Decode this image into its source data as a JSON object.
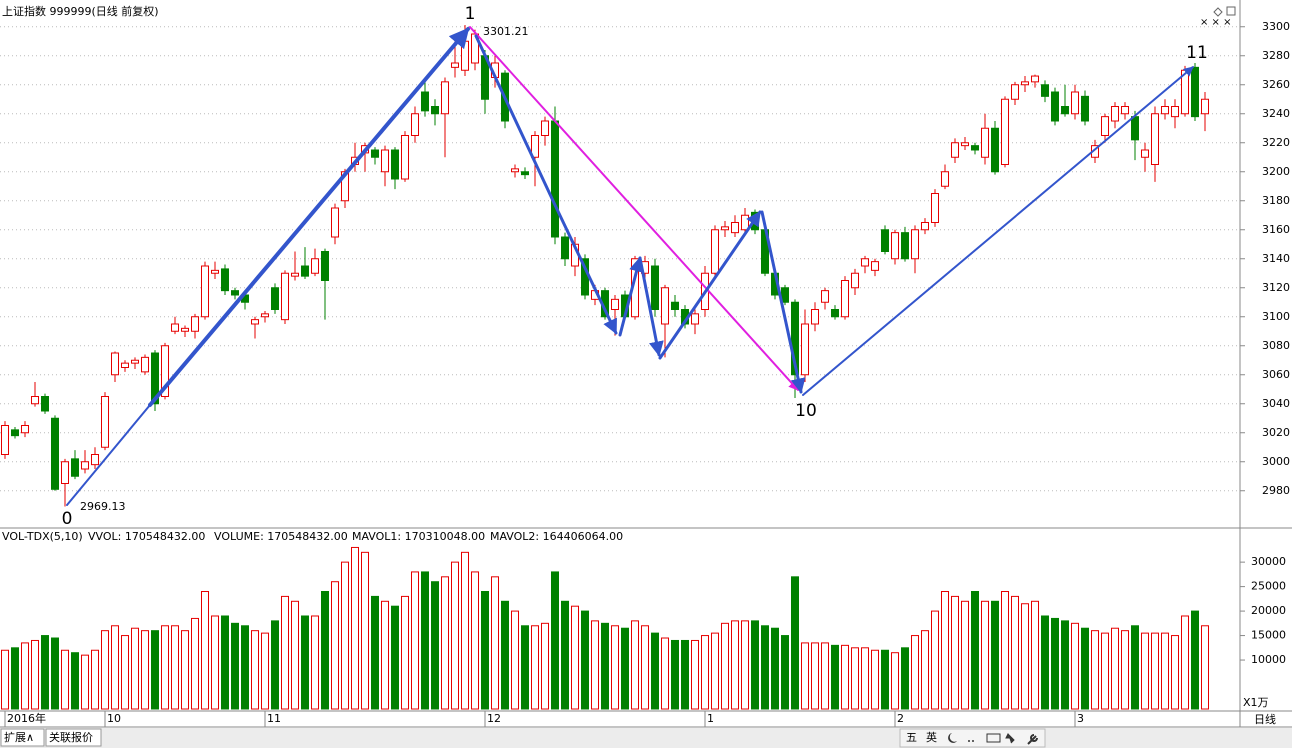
{
  "chart_data": [
    {
      "type": "candlestick",
      "title": "上证指数 999999(日线 前复权)",
      "up_color": "#e60000",
      "down_color": "#008000",
      "categories": [
        "2016年",
        null,
        null,
        null,
        null,
        null,
        null,
        null,
        null,
        null,
        "10",
        null,
        null,
        null,
        null,
        null,
        null,
        null,
        null,
        null,
        null,
        null,
        null,
        null,
        null,
        null,
        "11",
        null,
        null,
        null,
        null,
        null,
        null,
        null,
        null,
        null,
        null,
        null,
        null,
        null,
        null,
        null,
        null,
        null,
        null,
        null,
        null,
        null,
        "12",
        null,
        null,
        null,
        null,
        null,
        null,
        null,
        null,
        null,
        null,
        null,
        null,
        null,
        null,
        null,
        null,
        null,
        null,
        null,
        null,
        null,
        "1",
        null,
        null,
        null,
        null,
        null,
        null,
        null,
        null,
        null,
        null,
        null,
        null,
        null,
        null,
        null,
        null,
        null,
        null,
        "2",
        null,
        null,
        null,
        null,
        null,
        null,
        null,
        null,
        null,
        null,
        null,
        null,
        null,
        null,
        null,
        null,
        null,
        "3",
        null,
        null,
        null,
        null,
        null,
        null,
        null,
        null,
        null,
        null,
        null,
        null,
        null
      ],
      "ohlc": [
        [
          3005,
          3028,
          3002,
          3025
        ],
        [
          3022,
          3024,
          3016,
          3018
        ],
        [
          3020,
          3028,
          3017,
          3025
        ],
        [
          3040,
          3055,
          3038,
          3045
        ],
        [
          3045,
          3047,
          3033,
          3035
        ],
        [
          3030,
          3032,
          2980,
          2981
        ],
        [
          2985,
          3002,
          2969.13,
          3000
        ],
        [
          3002,
          3008,
          2988,
          2990
        ],
        [
          2995,
          3008,
          2992,
          3000
        ],
        [
          2998,
          3010,
          2995,
          3005
        ],
        [
          3010,
          3048,
          3008,
          3045
        ],
        [
          3060,
          3076,
          3055,
          3075
        ],
        [
          3065,
          3070,
          3062,
          3068
        ],
        [
          3068,
          3072,
          3064,
          3070
        ],
        [
          3062,
          3074,
          3060,
          3072
        ],
        [
          3075,
          3077,
          3035,
          3040
        ],
        [
          3045,
          3082,
          3043,
          3080
        ],
        [
          3090,
          3100,
          3088,
          3095
        ],
        [
          3090,
          3094,
          3086,
          3092
        ],
        [
          3090,
          3102,
          3085,
          3100
        ],
        [
          3100,
          3138,
          3098,
          3135
        ],
        [
          3130,
          3138,
          3126,
          3132
        ],
        [
          3133,
          3136,
          3115,
          3118
        ],
        [
          3118,
          3120,
          3112,
          3115
        ],
        [
          3115,
          3118,
          3105,
          3110
        ],
        [
          3095,
          3100,
          3085,
          3098
        ],
        [
          3100,
          3104,
          3096,
          3102
        ],
        [
          3120,
          3123,
          3102,
          3105
        ],
        [
          3098,
          3132,
          3095,
          3130
        ],
        [
          3128,
          3145,
          3125,
          3130
        ],
        [
          3135,
          3148,
          3126,
          3128
        ],
        [
          3130,
          3147,
          3128,
          3140
        ],
        [
          3145,
          3147,
          3098,
          3125
        ],
        [
          3155,
          3178,
          3150,
          3175
        ],
        [
          3180,
          3202,
          3175,
          3200
        ],
        [
          3205,
          3220,
          3200,
          3210
        ],
        [
          3213,
          3220,
          3200,
          3218
        ],
        [
          3215,
          3217,
          3205,
          3210
        ],
        [
          3200,
          3218,
          3190,
          3215
        ],
        [
          3215,
          3217,
          3188,
          3195
        ],
        [
          3195,
          3228,
          3193,
          3225
        ],
        [
          3225,
          3245,
          3220,
          3240
        ],
        [
          3255,
          3262,
          3238,
          3242
        ],
        [
          3245,
          3250,
          3232,
          3240
        ],
        [
          3240,
          3265,
          3210,
          3262
        ],
        [
          3272,
          3290,
          3265,
          3275
        ],
        [
          3270,
          3301.21,
          3266,
          3290
        ],
        [
          3275,
          3298,
          3270,
          3295
        ],
        [
          3280,
          3284,
          3240,
          3250
        ],
        [
          3265,
          3280,
          3258,
          3275
        ],
        [
          3268,
          3270,
          3230,
          3235
        ],
        [
          3200,
          3205,
          3196,
          3202
        ],
        [
          3200,
          3203,
          3195,
          3198
        ],
        [
          3210,
          3228,
          3190,
          3225
        ],
        [
          3225,
          3238,
          3218,
          3235
        ],
        [
          3235,
          3245,
          3150,
          3155
        ],
        [
          3155,
          3158,
          3135,
          3140
        ],
        [
          3135,
          3155,
          3128,
          3150
        ],
        [
          3140,
          3143,
          3112,
          3115
        ],
        [
          3112,
          3122,
          3108,
          3118
        ],
        [
          3118,
          3120,
          3098,
          3100
        ],
        [
          3105,
          3115,
          3087,
          3112
        ],
        [
          3115,
          3118,
          3098,
          3100
        ],
        [
          3100,
          3142,
          3098,
          3140
        ],
        [
          3130,
          3142,
          3125,
          3138
        ],
        [
          3135,
          3140,
          3100,
          3105
        ],
        [
          3095,
          3122,
          3072,
          3120
        ],
        [
          3110,
          3115,
          3100,
          3105
        ],
        [
          3105,
          3108,
          3092,
          3095
        ],
        [
          3095,
          3105,
          3088,
          3102
        ],
        [
          3105,
          3135,
          3100,
          3130
        ],
        [
          3130,
          3163,
          3126,
          3160
        ],
        [
          3160,
          3166,
          3155,
          3162
        ],
        [
          3158,
          3170,
          3155,
          3165
        ],
        [
          3160,
          3175,
          3157,
          3170
        ],
        [
          3172,
          3174,
          3157,
          3160
        ],
        [
          3160,
          3162,
          3128,
          3130
        ],
        [
          3130,
          3133,
          3112,
          3115
        ],
        [
          3120,
          3122,
          3108,
          3110
        ],
        [
          3110,
          3112,
          3044,
          3060
        ],
        [
          3060,
          3105,
          3055,
          3095
        ],
        [
          3095,
          3110,
          3090,
          3105
        ],
        [
          3110,
          3120,
          3105,
          3118
        ],
        [
          3105,
          3108,
          3098,
          3100
        ],
        [
          3100,
          3128,
          3098,
          3125
        ],
        [
          3120,
          3133,
          3115,
          3130
        ],
        [
          3135,
          3142,
          3130,
          3140
        ],
        [
          3132,
          3140,
          3128,
          3138
        ],
        [
          3160,
          3163,
          3143,
          3145
        ],
        [
          3140,
          3160,
          3136,
          3158
        ],
        [
          3158,
          3162,
          3138,
          3140
        ],
        [
          3140,
          3163,
          3130,
          3160
        ],
        [
          3160,
          3168,
          3157,
          3165
        ],
        [
          3165,
          3188,
          3162,
          3185
        ],
        [
          3190,
          3205,
          3188,
          3200
        ],
        [
          3210,
          3223,
          3206,
          3220
        ],
        [
          3218,
          3224,
          3215,
          3220
        ],
        [
          3218,
          3220,
          3212,
          3215
        ],
        [
          3210,
          3240,
          3205,
          3230
        ],
        [
          3230,
          3235,
          3198,
          3200
        ],
        [
          3205,
          3252,
          3203,
          3250
        ],
        [
          3250,
          3262,
          3246,
          3260
        ],
        [
          3260,
          3266,
          3255,
          3262
        ],
        [
          3262,
          3267,
          3258,
          3266
        ],
        [
          3260,
          3263,
          3248,
          3252
        ],
        [
          3255,
          3258,
          3232,
          3235
        ],
        [
          3245,
          3260,
          3238,
          3240
        ],
        [
          3240,
          3260,
          3236,
          3255
        ],
        [
          3252,
          3256,
          3232,
          3235
        ],
        [
          3210,
          3222,
          3206,
          3218
        ],
        [
          3225,
          3240,
          3220,
          3238
        ],
        [
          3235,
          3248,
          3230,
          3245
        ],
        [
          3240,
          3248,
          3236,
          3245
        ],
        [
          3238,
          3242,
          3208,
          3222
        ],
        [
          3210,
          3220,
          3200,
          3215
        ],
        [
          3205,
          3245,
          3193,
          3240
        ],
        [
          3240,
          3250,
          3236,
          3245
        ],
        [
          3238,
          3250,
          3230,
          3245
        ],
        [
          3240,
          3273,
          3238,
          3270
        ],
        [
          3272,
          3275,
          3235,
          3238
        ],
        [
          3240,
          3255,
          3228,
          3250
        ]
      ],
      "ylim": [
        2955,
        3315
      ],
      "yticks": [
        2980,
        3000,
        3020,
        3040,
        3060,
        3080,
        3100,
        3120,
        3140,
        3160,
        3180,
        3200,
        3220,
        3240,
        3260,
        3280,
        3300
      ],
      "grid": true,
      "annotations": [
        "0",
        "2969.13",
        "1",
        "3301.21",
        "10",
        "11"
      ],
      "x_axis_label": "日线"
    },
    {
      "type": "volume",
      "title": "VOL-TDX(5,10)",
      "readouts": [
        "VVOL: 170548432.00",
        "VOLUME: 170548432.00",
        "MAVOL1: 170310048.00",
        "MAVOL2: 164406064.00"
      ],
      "unit_label": "X1万",
      "values": [
        12000,
        12500,
        13500,
        14000,
        15000,
        14500,
        12000,
        11500,
        11000,
        12000,
        16000,
        17000,
        15000,
        16500,
        16000,
        16000,
        17000,
        17000,
        16000,
        18500,
        24000,
        19000,
        19000,
        17500,
        17000,
        16000,
        15500,
        18000,
        23000,
        22000,
        19000,
        19000,
        24000,
        26000,
        30000,
        33000,
        32000,
        23000,
        22000,
        21000,
        23000,
        28000,
        28000,
        26000,
        27000,
        30000,
        32000,
        28000,
        24000,
        27000,
        22000,
        20000,
        17000,
        17000,
        17500,
        28000,
        22000,
        21000,
        20000,
        18000,
        17500,
        17000,
        16500,
        18000,
        17000,
        15500,
        14500,
        14000,
        14000,
        14000,
        15000,
        15500,
        17500,
        18000,
        18000,
        18000,
        17000,
        16500,
        15000,
        27000,
        13500,
        13500,
        13500,
        13000,
        13000,
        12500,
        12500,
        12000,
        12000,
        11500,
        12500,
        15000,
        16000,
        20000,
        24000,
        23000,
        22000,
        24000,
        22000,
        22000,
        24000,
        23000,
        21500,
        22000,
        19000,
        18500,
        18000,
        17500,
        16500,
        16000,
        15500,
        16500,
        16000,
        17000,
        15500,
        15500,
        15500,
        15000,
        19000,
        20000,
        17000
      ],
      "ylim": [
        0,
        33500
      ],
      "yticks": [
        10000,
        15000,
        20000,
        25000,
        30000
      ]
    }
  ],
  "toolbar": {
    "tabs": [
      "扩展∧",
      "关联报价"
    ],
    "ime": [
      "五",
      "英"
    ]
  }
}
